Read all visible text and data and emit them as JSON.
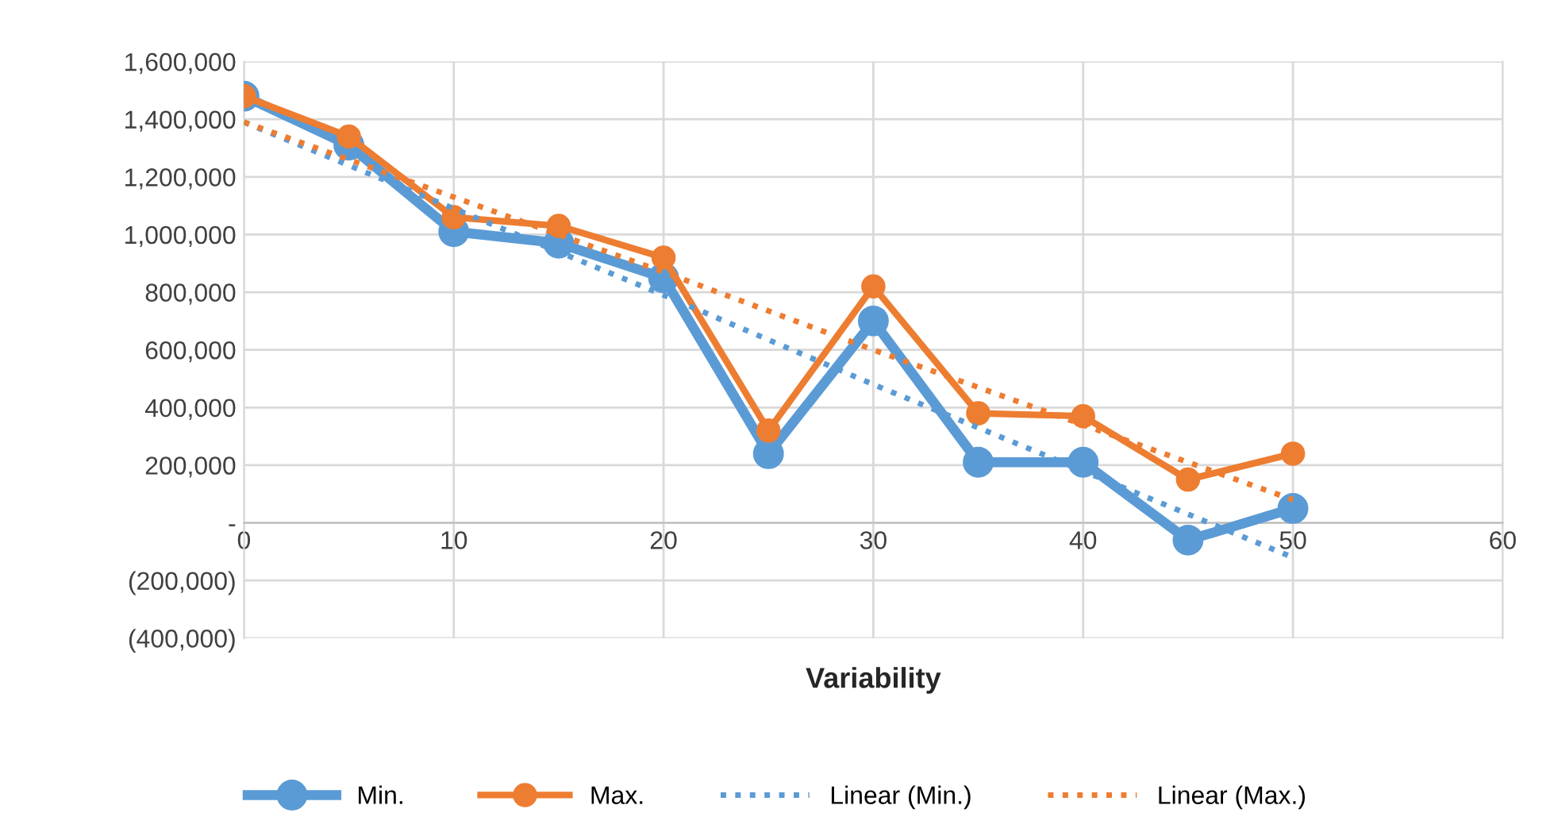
{
  "chart_data": {
    "type": "line",
    "xlabel": "Variability",
    "x": [
      0,
      5,
      10,
      15,
      20,
      25,
      30,
      35,
      40,
      45,
      50
    ],
    "series": [
      {
        "name": "Min.",
        "color": "#5b9bd5",
        "marker": "circle",
        "line_style": "solid",
        "values": [
          1480000,
          1310000,
          1010000,
          970000,
          850000,
          240000,
          700000,
          210000,
          210000,
          -60000,
          50000
        ]
      },
      {
        "name": "Max.",
        "color": "#ed7d31",
        "marker": "circle",
        "line_style": "solid",
        "values": [
          1480000,
          1340000,
          1060000,
          1030000,
          920000,
          320000,
          820000,
          380000,
          370000,
          150000,
          240000
        ]
      },
      {
        "name": "Linear (Min.)",
        "color": "#5b9bd5",
        "marker": "none",
        "line_style": "dotted",
        "x": [
          0,
          10,
          20,
          30,
          40,
          50
        ],
        "values": [
          1390000,
          1090000,
          790000,
          480000,
          180000,
          -120000
        ]
      },
      {
        "name": "Linear (Max.)",
        "color": "#ed7d31",
        "marker": "none",
        "line_style": "dotted",
        "x": [
          0,
          10,
          20,
          30,
          40,
          50
        ],
        "values": [
          1390000,
          1130000,
          870000,
          600000,
          340000,
          80000
        ]
      }
    ],
    "xlim": [
      0,
      60
    ],
    "xticks": [
      0,
      10,
      20,
      30,
      40,
      50,
      60
    ],
    "ylim": [
      -400000,
      1600000
    ],
    "yticks": [
      {
        "value": -400000,
        "label": "(400,000)"
      },
      {
        "value": -200000,
        "label": "(200,000)"
      },
      {
        "value": 0,
        "label": "-"
      },
      {
        "value": 200000,
        "label": "200,000"
      },
      {
        "value": 400000,
        "label": "400,000"
      },
      {
        "value": 600000,
        "label": "600,000"
      },
      {
        "value": 800000,
        "label": "800,000"
      },
      {
        "value": 1000000,
        "label": "1,000,000"
      },
      {
        "value": 1200000,
        "label": "1,200,000"
      },
      {
        "value": 1400000,
        "label": "1,400,000"
      },
      {
        "value": 1600000,
        "label": "1,600,000"
      }
    ],
    "grid": true,
    "legend": "bottom"
  }
}
